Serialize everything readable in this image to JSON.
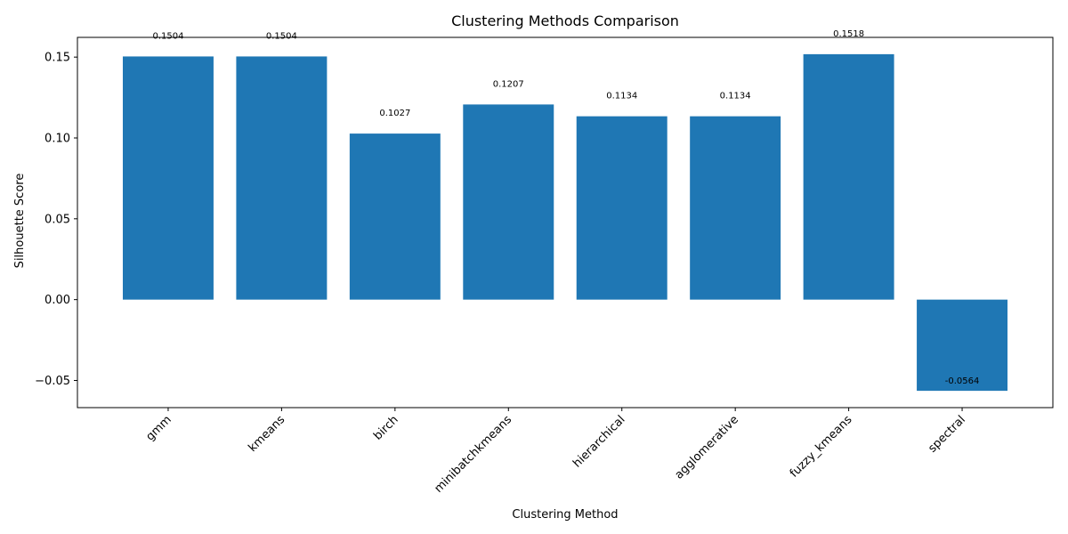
{
  "chart_data": {
    "type": "bar",
    "title": "Clustering Methods Comparison",
    "xlabel": "Clustering Method",
    "ylabel": "Silhouette Score",
    "categories": [
      "gmm",
      "kmeans",
      "birch",
      "minibatchkmeans",
      "hierarchical",
      "agglomerative",
      "fuzzy_kmeans",
      "spectral"
    ],
    "values": [
      0.1504,
      0.1504,
      0.1027,
      0.1207,
      0.1134,
      0.1134,
      0.1518,
      -0.0564
    ],
    "data_labels": [
      "0.1504",
      "0.1504",
      "0.1027",
      "0.1207",
      "0.1134",
      "0.1134",
      "0.1518",
      "-0.0564"
    ],
    "yticks": [
      -0.05,
      0.0,
      0.05,
      0.1,
      0.15
    ],
    "ytick_labels": [
      "−0.05",
      "0.00",
      "0.05",
      "0.10",
      "0.15"
    ],
    "ylim": [
      -0.0668,
      0.1622
    ],
    "grid": false,
    "legend": "none",
    "bar_color": "#1f77b4",
    "x_tick_rotation_deg": 45
  }
}
